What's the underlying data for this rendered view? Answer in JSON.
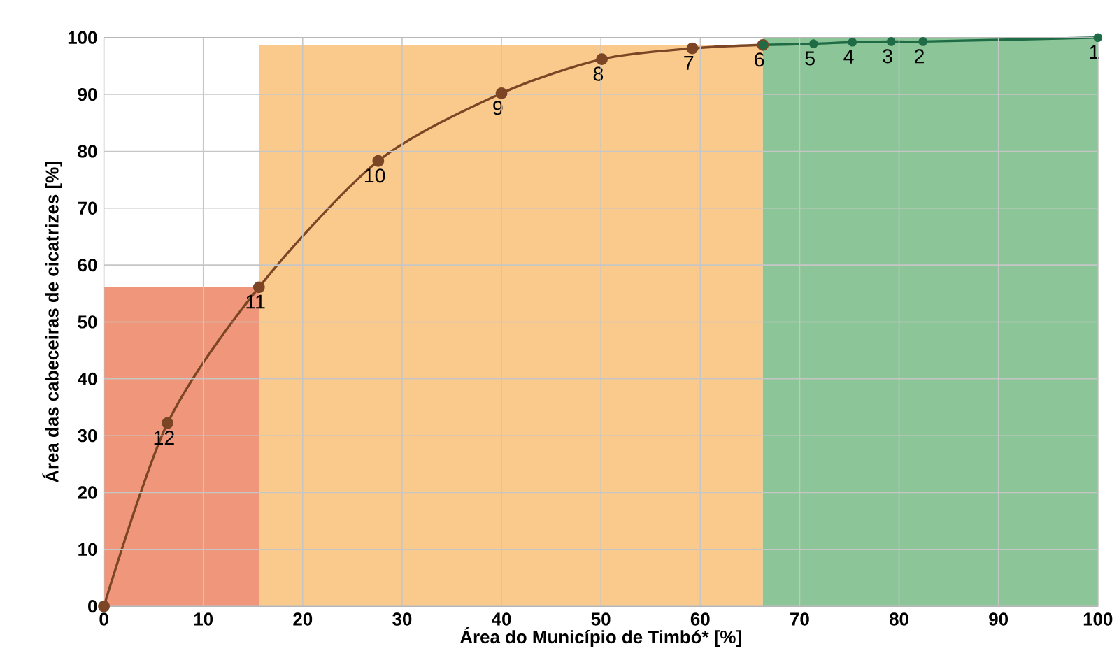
{
  "chart_data": {
    "type": "line",
    "xlabel": "Área do Município de Timbó* [%]",
    "ylabel": "Área das cabeceiras de cicatrizes [%]",
    "xlim": [
      0,
      100
    ],
    "ylim": [
      0,
      100
    ],
    "xticks": [
      0,
      10,
      20,
      30,
      40,
      50,
      60,
      70,
      80,
      90,
      100
    ],
    "yticks": [
      0,
      10,
      20,
      30,
      40,
      50,
      60,
      70,
      80,
      90,
      100
    ],
    "grid": true,
    "marker": "circle",
    "line_style": "solid",
    "series": [
      {
        "color": "#7b4526",
        "x": [
          0,
          6.4,
          15.6,
          27.6,
          40,
          50.1,
          59.2,
          66.3
        ],
        "values": [
          0,
          32.2,
          56.1,
          78.3,
          90.2,
          96.2,
          98.1,
          98.7
        ]
      },
      {
        "color": "#1e6b45",
        "x": [
          66.3,
          71.4,
          75.3,
          79.2,
          82.4,
          100
        ],
        "values": [
          98.7,
          98.9,
          99.2,
          99.3,
          99.3,
          100
        ]
      }
    ],
    "annotations": [
      {
        "text": "12",
        "x": 6.4,
        "y": 32.2
      },
      {
        "text": "11",
        "x": 15.6,
        "y": 56.1
      },
      {
        "text": "10",
        "x": 27.6,
        "y": 78.3
      },
      {
        "text": "9",
        "x": 40,
        "y": 90.2
      },
      {
        "text": "8",
        "x": 50.1,
        "y": 96.2
      },
      {
        "text": "7",
        "x": 59.2,
        "y": 98.1
      },
      {
        "text": "6",
        "x": 66.3,
        "y": 98.7
      },
      {
        "text": "5",
        "x": 71.4,
        "y": 98.9
      },
      {
        "text": "4",
        "x": 75.3,
        "y": 99.2
      },
      {
        "text": "3",
        "x": 79.2,
        "y": 99.3
      },
      {
        "text": "2",
        "x": 82.4,
        "y": 99.3
      },
      {
        "text": "1",
        "x": 100,
        "y": 100
      }
    ],
    "bands": [
      {
        "axis": "x",
        "from": 0,
        "to": 15.6,
        "color": "#f0977b"
      },
      {
        "axis": "x",
        "from": 15.6,
        "to": 66.3,
        "color": "#fac98c"
      },
      {
        "axis": "x",
        "from": 66.3,
        "to": 100,
        "color": "#8cc698"
      }
    ]
  }
}
